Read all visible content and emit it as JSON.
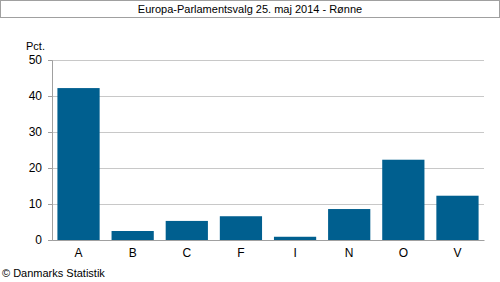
{
  "chart_data": {
    "type": "bar",
    "title": "Europa-Parlamentsvalg 25. maj 2014 - Rønne",
    "ylabel": "Pct.",
    "source": "© Danmarks Statistik",
    "categories": [
      "A",
      "B",
      "C",
      "F",
      "I",
      "N",
      "O",
      "V"
    ],
    "values": [
      42.2,
      2.5,
      5.3,
      6.6,
      0.9,
      8.6,
      22.3,
      12.3
    ],
    "color": "#005f8f",
    "ylim": [
      0,
      50
    ],
    "yticks": [
      0,
      10,
      20,
      30,
      40,
      50
    ],
    "grid": true
  }
}
